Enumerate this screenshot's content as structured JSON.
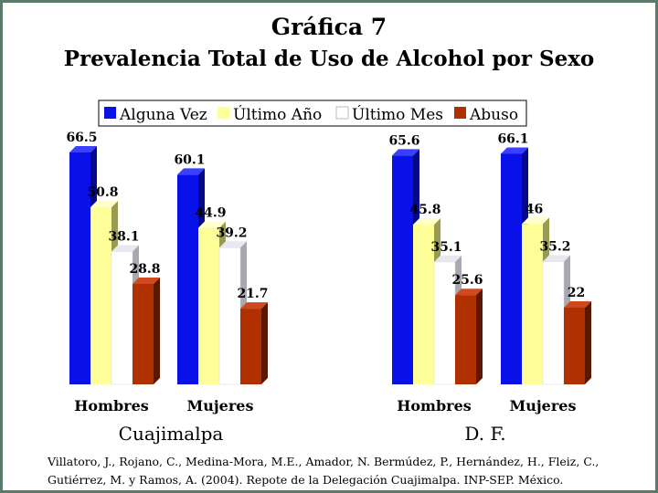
{
  "title_line1": "Gráfica 7",
  "title_line2": "Prevalencia Total de Uso de Alcohol por Sexo",
  "citation": "Villatoro, J., Rojano, C., Medina-Mora, M.E., Amador, N. Bermúdez, P., Hernández, H., Fleiz, C., Gutiérrez, M. y Ramos, A. (2004). Repote de la Delegación Cuajimalpa. INP-SEP. México.",
  "colors": {
    "border": "#5a7a6a",
    "series": [
      "#0a10e8",
      "#ffff99",
      "#ffffff",
      "#b03000"
    ],
    "side": [
      "#06088a",
      "#9a9a50",
      "#a8a8b0",
      "#5a1800"
    ],
    "top": [
      "#3a40ff",
      "#ffffcc",
      "#e8e8f0",
      "#d04820"
    ]
  },
  "chart_data": {
    "type": "bar",
    "title": "Gráfica 7 Prevalencia Total de Uso de Alcohol por Sexo",
    "legend_placement": "top",
    "grid": false,
    "ylim": [
      0,
      100
    ],
    "series": [
      {
        "name": "Alguna Vez",
        "values": [
          66.5,
          60.1,
          65.6,
          66.1
        ]
      },
      {
        "name": "Último Año",
        "values": [
          50.8,
          44.9,
          45.8,
          46
        ]
      },
      {
        "name": "Último Mes",
        "values": [
          38.1,
          39.2,
          35.1,
          35.2
        ]
      },
      {
        "name": "Abuso",
        "values": [
          28.8,
          21.7,
          25.6,
          22
        ]
      }
    ],
    "value_labels": [
      [
        "66.5",
        "50.8",
        "38.1",
        "28.8"
      ],
      [
        "60.1",
        "44.9",
        "39.2",
        "21.7"
      ],
      [
        "65.6",
        "45.8",
        "35.1",
        "25.6"
      ],
      [
        "66.1",
        "46",
        "35.2",
        "22"
      ]
    ],
    "categories": [
      "Hombres",
      "Mujeres",
      "Hombres",
      "Mujeres"
    ],
    "groups": [
      {
        "label": "Cuajimalpa",
        "categories": [
          "Hombres",
          "Mujeres"
        ]
      },
      {
        "label": "D. F.",
        "categories": [
          "Hombres",
          "Mujeres"
        ]
      }
    ]
  }
}
